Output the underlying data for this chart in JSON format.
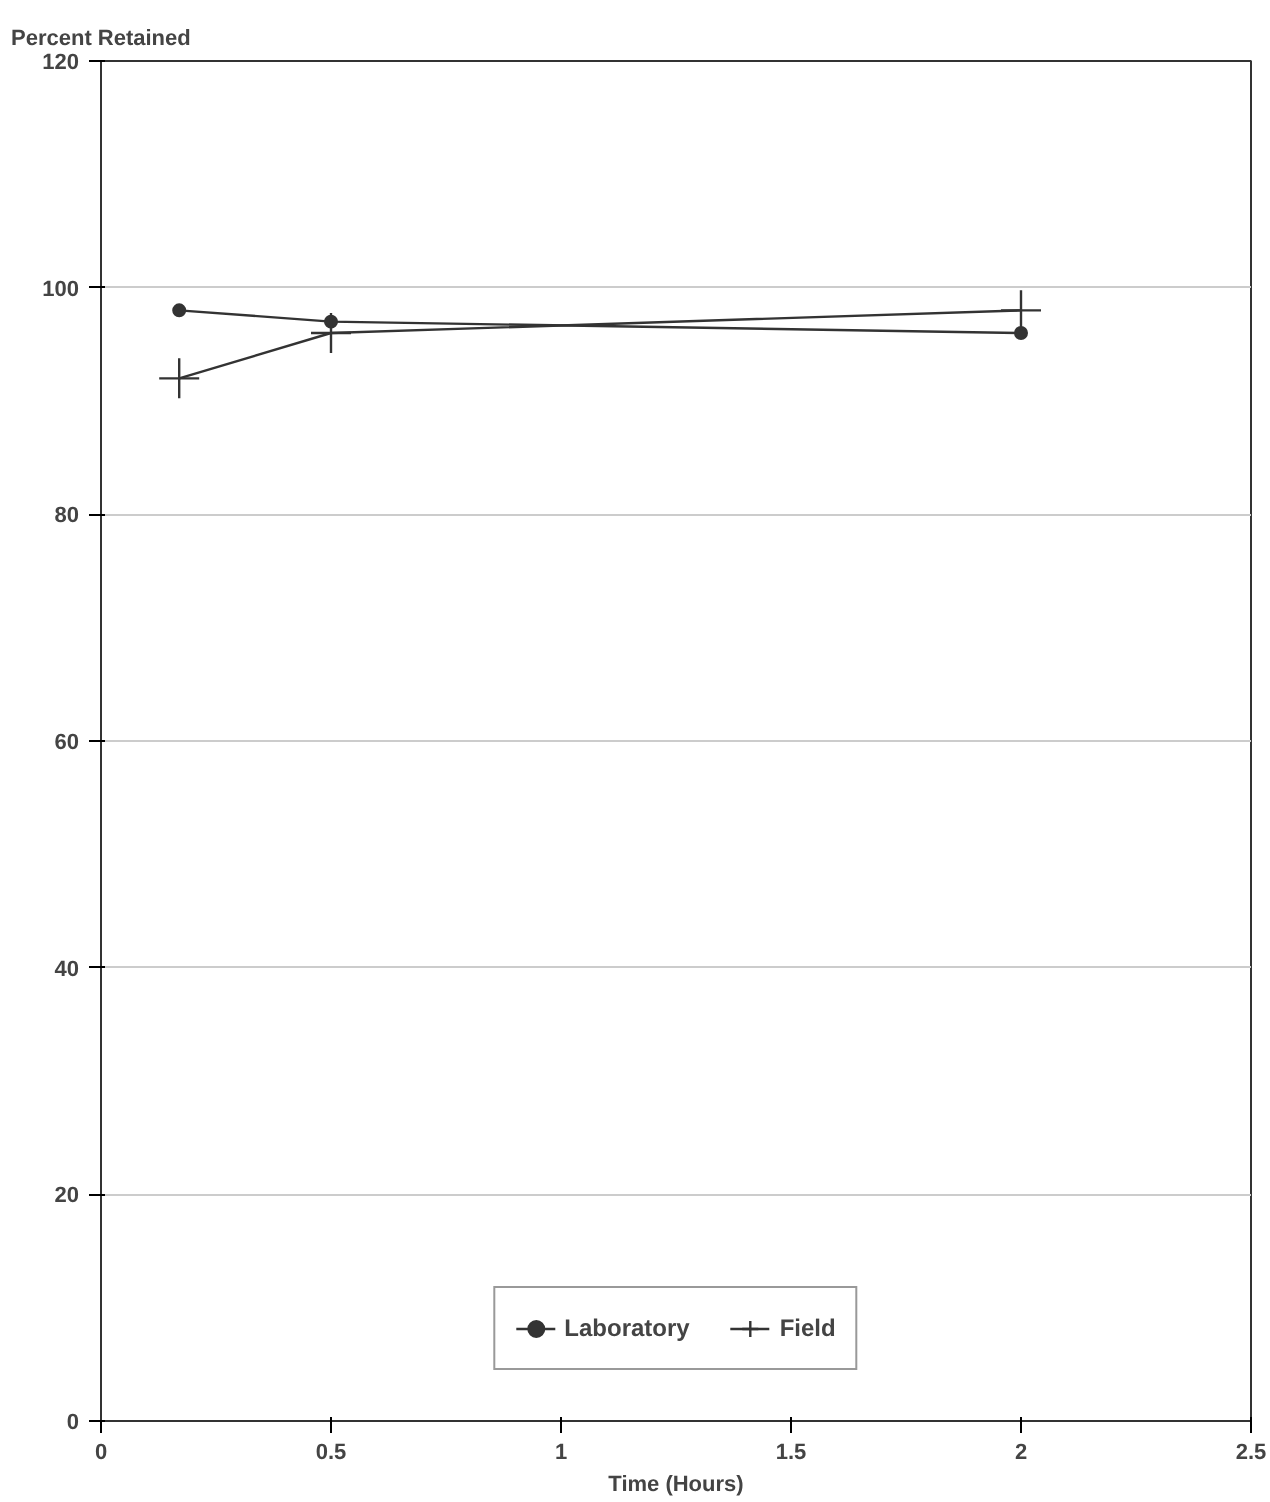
{
  "chart_data": {
    "type": "line",
    "ylabel": "Percent Retained",
    "xlabel": "Time (Hours)",
    "x": [
      0.17,
      0.5,
      2
    ],
    "series": [
      {
        "name": "Laboratory",
        "color": "#333333",
        "values": [
          98,
          97,
          96
        ],
        "marker": "circle"
      },
      {
        "name": "Field",
        "color": "#333333",
        "values": [
          92,
          96,
          98
        ],
        "marker": "cross"
      }
    ],
    "xlim": [
      0,
      2.5
    ],
    "xticks": [
      0,
      0.5,
      1,
      1.5,
      2,
      2.5
    ],
    "ylim": [
      0,
      120
    ],
    "yticks": [
      0,
      20,
      40,
      60,
      80,
      100,
      120
    ],
    "grid": "y",
    "legend": "bottom",
    "line_style": "solid"
  }
}
